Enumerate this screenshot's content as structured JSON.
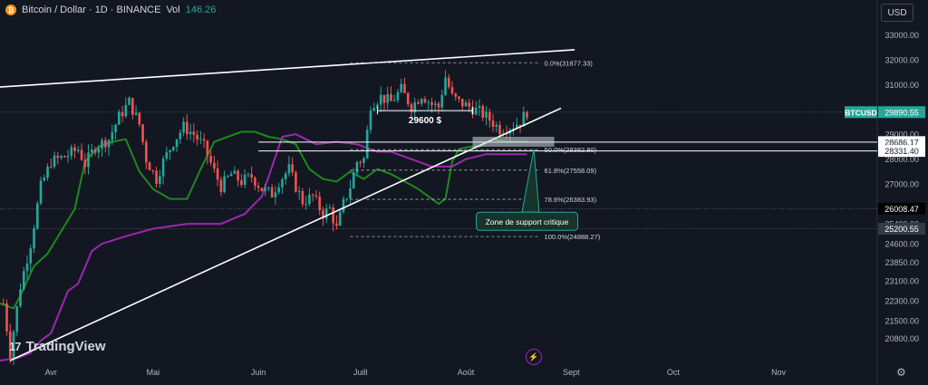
{
  "header": {
    "coin_glyph": "₿",
    "title": "Bitcoin / Dollar · 1D · BINANCE",
    "vol_label": "Vol",
    "vol_value": "146.26"
  },
  "currency_button": "USD",
  "logo": {
    "mark": "17",
    "text": "TradingView"
  },
  "icons": {
    "settings": "gear-icon",
    "events": "lightning-icon"
  },
  "colors": {
    "background": "#131722",
    "bull": "#26a69a",
    "bear": "#ef5350",
    "green_line": "#1b8a1b",
    "purple_line": "#9c27b0",
    "trendline": "#ffffff"
  },
  "chart_data": {
    "type": "candlestick",
    "title": "Bitcoin / Dollar · 1D · BINANCE",
    "ylim": [
      19900,
      33600
    ],
    "y_ticks": [
      "33000.00",
      "32000.00",
      "31000.00",
      "30000.00",
      "29000.00",
      "28000.00",
      "27000.00",
      "26000.00",
      "25400.00",
      "24600.00",
      "23850.00",
      "23100.00",
      "22300.00",
      "21500.00",
      "20800.00"
    ],
    "x_ticks": [
      "Avr",
      "Mai",
      "Juin",
      "Juill",
      "Août",
      "Sept",
      "Oct",
      "Nov"
    ],
    "x_range_days": [
      -15,
      243
    ],
    "price_path": [
      [
        -14,
        22200
      ],
      [
        -12,
        20200
      ],
      [
        -9,
        22900
      ],
      [
        -6,
        24600
      ],
      [
        -3,
        26900
      ],
      [
        0,
        27900
      ],
      [
        4,
        28100
      ],
      [
        8,
        28400
      ],
      [
        10,
        27800
      ],
      [
        13,
        28500
      ],
      [
        17,
        28800
      ],
      [
        20,
        29700
      ],
      [
        23,
        30300
      ],
      [
        26,
        29400
      ],
      [
        28,
        28000
      ],
      [
        31,
        27200
      ],
      [
        33,
        27900
      ],
      [
        36,
        28700
      ],
      [
        39,
        29300
      ],
      [
        42,
        29000
      ],
      [
        45,
        28500
      ],
      [
        48,
        27500
      ],
      [
        50,
        26900
      ],
      [
        53,
        27400
      ],
      [
        56,
        27100
      ],
      [
        59,
        27300
      ],
      [
        62,
        26800
      ],
      [
        65,
        26600
      ],
      [
        67,
        27100
      ],
      [
        70,
        27600
      ],
      [
        72,
        26900
      ],
      [
        74,
        26300
      ],
      [
        77,
        26500
      ],
      [
        80,
        25800
      ],
      [
        82,
        26000
      ],
      [
        84,
        25200
      ],
      [
        86,
        26200
      ],
      [
        88,
        26900
      ],
      [
        90,
        27900
      ],
      [
        92,
        28000
      ],
      [
        94,
        30200
      ],
      [
        97,
        30500
      ],
      [
        100,
        30300
      ],
      [
        103,
        30800
      ],
      [
        106,
        30100
      ],
      [
        109,
        30600
      ],
      [
        112,
        30200
      ],
      [
        114,
        30100
      ],
      [
        116,
        31300
      ],
      [
        118,
        30500
      ],
      [
        120,
        30300
      ],
      [
        123,
        30100
      ],
      [
        126,
        29900
      ],
      [
        129,
        29600
      ],
      [
        132,
        29200
      ],
      [
        135,
        29300
      ],
      [
        138,
        29500
      ],
      [
        140,
        29900
      ]
    ],
    "series": [
      {
        "name": "",
        "color": "#1b8a1b",
        "points": [
          [
            -15,
            22200
          ],
          [
            -11,
            22000
          ],
          [
            -9,
            22500
          ],
          [
            -5,
            23700
          ],
          [
            -1,
            24200
          ],
          [
            3,
            25100
          ],
          [
            7,
            26000
          ],
          [
            10,
            27900
          ],
          [
            14,
            28500
          ],
          [
            18,
            28700
          ],
          [
            22,
            28800
          ],
          [
            26,
            27500
          ],
          [
            30,
            26800
          ],
          [
            35,
            26400
          ],
          [
            40,
            26400
          ],
          [
            44,
            27600
          ],
          [
            48,
            28700
          ],
          [
            52,
            28900
          ],
          [
            56,
            29100
          ],
          [
            60,
            29100
          ],
          [
            64,
            28900
          ],
          [
            68,
            28800
          ],
          [
            72,
            28600
          ],
          [
            76,
            27600
          ],
          [
            80,
            27200
          ],
          [
            84,
            27100
          ],
          [
            88,
            27500
          ],
          [
            92,
            27200
          ],
          [
            96,
            27600
          ],
          [
            100,
            27400
          ],
          [
            104,
            27100
          ],
          [
            108,
            26800
          ],
          [
            112,
            26400
          ],
          [
            114,
            26200
          ],
          [
            116,
            26400
          ],
          [
            118,
            27900
          ],
          [
            120,
            28400
          ],
          [
            123,
            28500
          ],
          [
            126,
            28500
          ],
          [
            130,
            28800
          ],
          [
            134,
            28700
          ],
          [
            140,
            28700
          ]
        ]
      },
      {
        "name": "",
        "color": "#9c27b0",
        "points": [
          [
            -15,
            19900
          ],
          [
            -10,
            20000
          ],
          [
            -6,
            20200
          ],
          [
            -3,
            20700
          ],
          [
            0,
            21000
          ],
          [
            5,
            22700
          ],
          [
            8,
            23000
          ],
          [
            12,
            24300
          ],
          [
            15,
            24600
          ],
          [
            22,
            24900
          ],
          [
            30,
            25200
          ],
          [
            40,
            25400
          ],
          [
            50,
            25400
          ],
          [
            57,
            25800
          ],
          [
            62,
            26500
          ],
          [
            68,
            28900
          ],
          [
            72,
            29000
          ],
          [
            78,
            28600
          ],
          [
            84,
            28700
          ],
          [
            90,
            28600
          ],
          [
            96,
            28300
          ],
          [
            100,
            28300
          ],
          [
            106,
            28000
          ],
          [
            112,
            27700
          ],
          [
            118,
            27700
          ],
          [
            122,
            28000
          ],
          [
            128,
            28200
          ],
          [
            134,
            28200
          ],
          [
            140,
            28200
          ]
        ]
      }
    ],
    "trendlines": [
      {
        "name": "upper-resistance",
        "from": [
          -15,
          30900
        ],
        "to": [
          154,
          32400
        ]
      },
      {
        "name": "rising-support",
        "from": [
          -12,
          19900
        ],
        "to": [
          150,
          30050
        ]
      }
    ],
    "fib_levels": [
      {
        "label": "0.0%(31877.33)",
        "price": 31877.33
      },
      {
        "label": "50.0%(28382.80)",
        "price": 28382.8
      },
      {
        "label": "61.8%(27558.09)",
        "price": 27558.09
      },
      {
        "label": "78.6%(26383.93)",
        "price": 26383.93
      },
      {
        "label": "100.0%(24888.27)",
        "price": 24888.27
      }
    ],
    "fib_x_range": [
      88,
      144
    ],
    "horizontal_lines": [
      {
        "price": 28686.17,
        "label": "28686.17"
      },
      {
        "price": 28331.4,
        "label": "28331.40"
      }
    ],
    "price_tags": [
      {
        "label": "BTCUSD",
        "value": "29890.55",
        "price": 29890.55,
        "color": "#26a69a"
      },
      {
        "label": "",
        "value": "26008.47",
        "price": 26008.47,
        "color": "#000000"
      },
      {
        "label": "",
        "value": "25200.55",
        "price": 25200.55,
        "color": "#363a45"
      }
    ],
    "support_zone": {
      "x": [
        124,
        148
      ],
      "y": [
        28500,
        28900
      ]
    },
    "range_marker": {
      "label": "29600 $",
      "x": [
        96,
        124
      ],
      "price": 29950
    },
    "annotation": {
      "text": "Zone de support critique",
      "anchor": [
        142,
        28400
      ],
      "box_day": 140,
      "box_price": 25500
    }
  }
}
